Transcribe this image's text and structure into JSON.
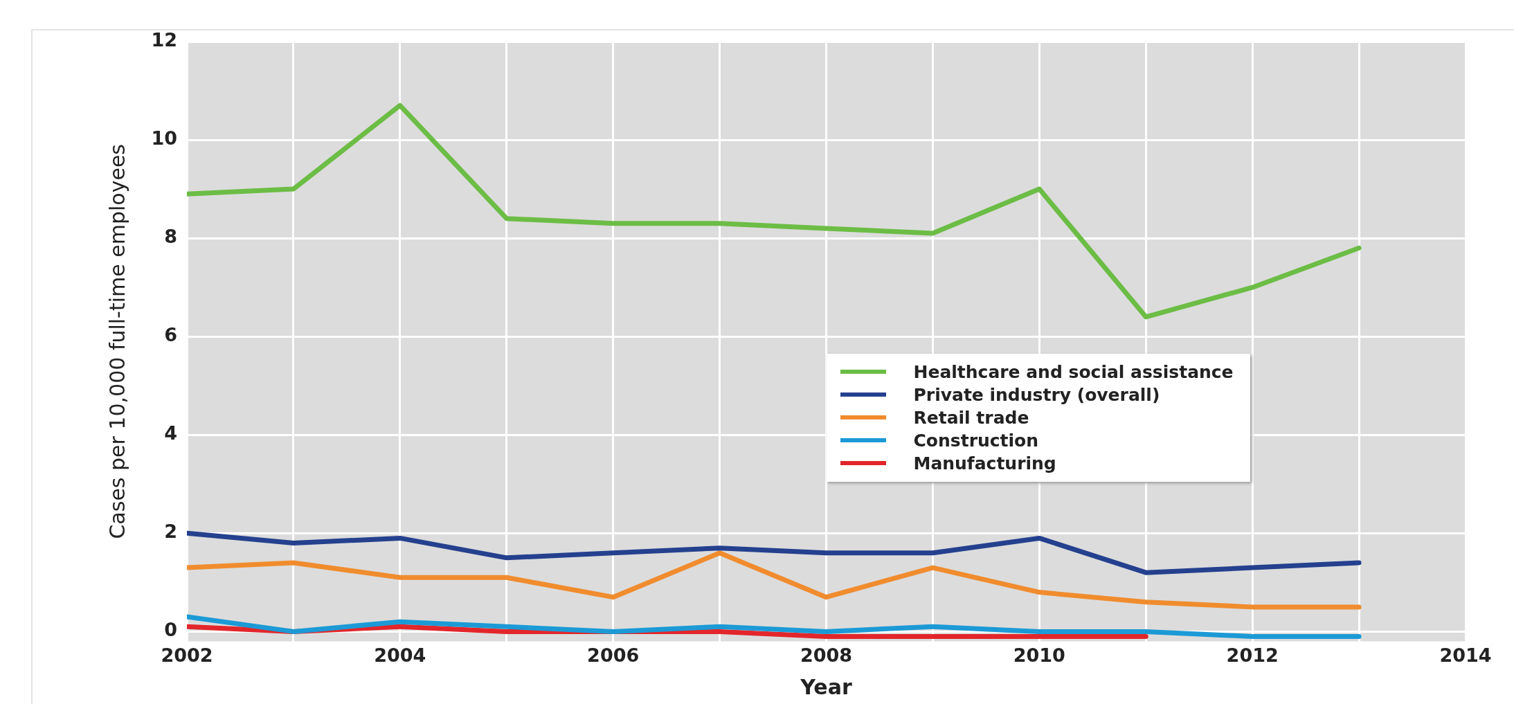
{
  "chart_data": {
    "type": "line",
    "xlabel": "Year",
    "ylabel": "Cases per 10,000 full-time employees",
    "x": [
      2002,
      2003,
      2004,
      2005,
      2006,
      2007,
      2008,
      2009,
      2010,
      2011,
      2012,
      2013
    ],
    "xlim": [
      2002,
      2014
    ],
    "xticks": [
      2002,
      {
        "value": 2003,
        "label": null
      },
      2004,
      {
        "value": 2005,
        "label": null
      },
      2006,
      {
        "value": 2007,
        "label": null
      },
      2008,
      {
        "value": 2009,
        "label": null
      },
      2010,
      {
        "value": 2011,
        "label": null
      },
      2012,
      {
        "value": 2013,
        "label": null
      },
      2014
    ],
    "ylim": [
      -0.2,
      12
    ],
    "yticks": [
      0,
      2,
      4,
      6,
      8,
      10,
      12
    ],
    "grid": true,
    "legend": "right",
    "marker": "none",
    "line_style": "solid",
    "series": [
      {
        "name": "Healthcare and social assistance",
        "color": "#6cbd45",
        "values": [
          8.9,
          9.0,
          10.7,
          8.4,
          8.3,
          8.3,
          8.2,
          8.1,
          9.0,
          6.4,
          7.0,
          7.8
        ]
      },
      {
        "name": "Private industry (overall)",
        "color": "#24408e",
        "values": [
          2.0,
          1.8,
          1.9,
          1.5,
          1.6,
          1.7,
          1.6,
          1.6,
          1.9,
          1.2,
          1.3,
          1.4
        ]
      },
      {
        "name": "Retail trade",
        "color": "#f08c2e",
        "values": [
          1.3,
          1.4,
          1.1,
          1.1,
          0.7,
          1.6,
          0.7,
          1.3,
          0.8,
          0.6,
          0.5,
          0.5
        ]
      },
      {
        "name": "Construction",
        "color": "#1c9ad6",
        "values": [
          0.3,
          0.0,
          0.2,
          0.1,
          0.0,
          0.1,
          0.0,
          0.1,
          0.0,
          0.0,
          -0.1,
          -0.1
        ]
      },
      {
        "name": "Manufacturing",
        "color": "#e2262b",
        "values": [
          0.1,
          0.0,
          0.1,
          0.0,
          0.0,
          0.0,
          -0.1,
          -0.1,
          -0.1,
          -0.1,
          null,
          null
        ]
      }
    ]
  }
}
